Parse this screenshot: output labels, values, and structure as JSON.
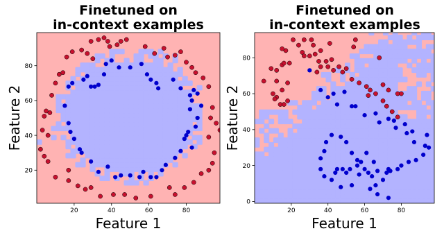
{
  "chart_data": [
    {
      "type": "scatter",
      "title": [
        "Finetuned on",
        "in-context examples"
      ],
      "xlabel": "Feature 1",
      "ylabel": "Feature 2",
      "xlim": [
        0,
        98
      ],
      "ylim": [
        1,
        99
      ],
      "xticks": [
        20,
        40,
        60,
        80
      ],
      "yticks": [
        20,
        40,
        60,
        80
      ],
      "background": "decision regions (class 0 red / class 1 blue), outer ring red, interior blue",
      "colors": {
        "class0": "#c8102e",
        "class1": "#0000cc",
        "region0": "#ffb3b3",
        "region1": "#b3b3ff"
      },
      "series": [
        {
          "class": 0,
          "points": [
            [
              2,
              32
            ],
            [
              3,
              43
            ],
            [
              4,
              51
            ],
            [
              5,
              54
            ],
            [
              7,
              53
            ],
            [
              6,
              40
            ],
            [
              8,
              63
            ],
            [
              10,
              70
            ],
            [
              12,
              75
            ],
            [
              14,
              76
            ],
            [
              16,
              85
            ],
            [
              19,
              88
            ],
            [
              24,
              89
            ],
            [
              27,
              87
            ],
            [
              30,
              84
            ],
            [
              29,
              94
            ],
            [
              33,
              95
            ],
            [
              36,
              96
            ],
            [
              38,
              94
            ],
            [
              39,
              91
            ],
            [
              43,
              92
            ],
            [
              45,
              94
            ],
            [
              48,
              95
            ],
            [
              58,
              91
            ],
            [
              63,
              87
            ],
            [
              68,
              90
            ],
            [
              70,
              85
            ],
            [
              74,
              86
            ],
            [
              77,
              88
            ],
            [
              80,
              82
            ],
            [
              83,
              79
            ],
            [
              85,
              76
            ],
            [
              89,
              73
            ],
            [
              92,
              68
            ],
            [
              94,
              56
            ],
            [
              93,
              50
            ],
            [
              96,
              47
            ],
            [
              98,
              43
            ],
            [
              92,
              39
            ],
            [
              95,
              30
            ],
            [
              94,
              24
            ],
            [
              92,
              20
            ],
            [
              88,
              18
            ],
            [
              84,
              13
            ],
            [
              79,
              10
            ],
            [
              74,
              6
            ],
            [
              71,
              10
            ],
            [
              61,
              5
            ],
            [
              53,
              4
            ],
            [
              47,
              6
            ],
            [
              41,
              6
            ],
            [
              34,
              5
            ],
            [
              29,
              10
            ],
            [
              26,
              9
            ],
            [
              22,
              11
            ],
            [
              17,
              14
            ],
            [
              17,
              20
            ],
            [
              10,
              16
            ],
            [
              6,
              25
            ],
            [
              4,
              28
            ]
          ]
        },
        {
          "class": 1,
          "points": [
            [
              15,
              57
            ],
            [
              17,
              68
            ],
            [
              19,
              70
            ],
            [
              25,
              72
            ],
            [
              27,
              74
            ],
            [
              29,
              68
            ],
            [
              31,
              68
            ],
            [
              33,
              69
            ],
            [
              36,
              75
            ],
            [
              37,
              81
            ],
            [
              40,
              83
            ],
            [
              44,
              79
            ],
            [
              50,
              79
            ],
            [
              56,
              81
            ],
            [
              59,
              75
            ],
            [
              61,
              72
            ],
            [
              64,
              70
            ],
            [
              65,
              67
            ],
            [
              73,
              72
            ],
            [
              77,
              67
            ],
            [
              82,
              63
            ],
            [
              83,
              60
            ],
            [
              84,
              66
            ],
            [
              86,
              64
            ],
            [
              88,
              57
            ],
            [
              82,
              55
            ],
            [
              86,
              50
            ],
            [
              85,
              45
            ],
            [
              81,
              42
            ],
            [
              80,
              40
            ],
            [
              79,
              38
            ],
            [
              83,
              33
            ],
            [
              77,
              31
            ],
            [
              74,
              27
            ],
            [
              69,
              23
            ],
            [
              67,
              20
            ],
            [
              64,
              16
            ],
            [
              61,
              16
            ],
            [
              57,
              19
            ],
            [
              55,
              16
            ],
            [
              50,
              17
            ],
            [
              45,
              17
            ],
            [
              42,
              16
            ],
            [
              38,
              22
            ],
            [
              33,
              19
            ],
            [
              29,
              25
            ],
            [
              24,
              30
            ],
            [
              23,
              32
            ],
            [
              20,
              38
            ],
            [
              18,
              42
            ],
            [
              17,
              47
            ]
          ]
        }
      ]
    },
    {
      "type": "scatter",
      "title": [
        "Finetuned on",
        "in-context examples"
      ],
      "xlabel": "Feature 1",
      "ylabel": "Feature 2",
      "xlim": [
        0,
        98
      ],
      "ylim": [
        -1,
        94
      ],
      "xticks": [
        20,
        40,
        60,
        80
      ],
      "yticks": [
        0,
        20,
        40,
        60,
        80
      ],
      "background": "decision regions (class 0 red / class 1 blue), upper-left red, lower-right blue",
      "colors": {
        "class0": "#c8102e",
        "class1": "#0000cc",
        "region0": "#ffb3b3",
        "region1": "#b3b3ff"
      },
      "series": [
        {
          "class": 0,
          "points": [
            [
              5,
              67
            ],
            [
              9,
              74
            ],
            [
              10,
              60
            ],
            [
              12,
              58
            ],
            [
              14,
              54
            ],
            [
              16,
              54
            ],
            [
              18,
              56
            ],
            [
              15,
              62
            ],
            [
              12,
              67
            ],
            [
              12,
              73
            ],
            [
              15,
              76
            ],
            [
              16,
              77
            ],
            [
              19,
              77
            ],
            [
              17,
              84
            ],
            [
              15,
              85
            ],
            [
              21,
              90
            ],
            [
              24,
              87
            ],
            [
              26,
              83
            ],
            [
              27,
              81
            ],
            [
              30,
              81
            ],
            [
              32,
              87
            ],
            [
              33,
              82
            ],
            [
              35,
              78
            ],
            [
              36,
              75
            ],
            [
              39,
              78
            ],
            [
              40,
              75
            ],
            [
              42,
              79
            ],
            [
              43,
              73
            ],
            [
              46,
              75
            ],
            [
              48,
              72
            ],
            [
              50,
              74
            ],
            [
              53,
              68
            ],
            [
              57,
              66
            ],
            [
              61,
              64
            ],
            [
              63,
              62
            ],
            [
              62,
              59
            ],
            [
              66,
              60
            ],
            [
              70,
              65
            ],
            [
              73,
              62
            ],
            [
              70,
              56
            ],
            [
              72,
              53
            ],
            [
              75,
              50
            ],
            [
              78,
              47
            ],
            [
              78,
              60
            ],
            [
              80,
              60
            ],
            [
              68,
              80
            ],
            [
              54,
              86
            ],
            [
              55,
              90
            ],
            [
              41,
              88
            ],
            [
              31,
              90
            ],
            [
              27,
              90
            ],
            [
              34,
              72
            ],
            [
              18,
              66
            ],
            [
              11,
              57
            ],
            [
              36,
              84
            ]
          ]
        },
        {
          "class": 1,
          "points": [
            [
              30,
              73
            ],
            [
              36,
              62
            ],
            [
              40,
              58
            ],
            [
              43,
              60
            ],
            [
              45,
              54
            ],
            [
              49,
              61
            ],
            [
              53,
              53
            ],
            [
              55,
              53
            ],
            [
              60,
              48
            ],
            [
              66,
              49
            ],
            [
              68,
              44
            ],
            [
              73,
              46
            ],
            [
              76,
              45
            ],
            [
              77,
              41
            ],
            [
              82,
              43
            ],
            [
              83,
              38
            ],
            [
              86,
              39
            ],
            [
              87,
              33
            ],
            [
              93,
              31
            ],
            [
              94,
              37
            ],
            [
              95,
              30
            ],
            [
              92,
              26
            ],
            [
              88,
              23
            ],
            [
              84,
              22
            ],
            [
              80,
              20
            ],
            [
              78,
              18
            ],
            [
              73,
              18
            ],
            [
              72,
              16
            ],
            [
              70,
              12
            ],
            [
              66,
              9
            ],
            [
              64,
              14
            ],
            [
              62,
              16
            ],
            [
              60,
              18
            ],
            [
              57,
              15
            ],
            [
              56,
              20
            ],
            [
              52,
              18
            ],
            [
              50,
              16
            ],
            [
              48,
              18
            ],
            [
              45,
              18
            ],
            [
              44,
              16
            ],
            [
              42,
              12
            ],
            [
              38,
              14
            ],
            [
              36,
              18
            ],
            [
              36,
              24
            ],
            [
              38,
              28
            ],
            [
              39,
              33
            ],
            [
              42,
              37
            ],
            [
              47,
              36
            ],
            [
              50,
              33
            ],
            [
              53,
              27
            ],
            [
              56,
              23
            ],
            [
              61,
              27
            ],
            [
              65,
              22
            ],
            [
              63,
              7
            ],
            [
              67,
              4
            ],
            [
              73,
              2
            ],
            [
              74,
              17
            ],
            [
              67,
              17
            ],
            [
              58,
              22
            ],
            [
              53,
              9
            ],
            [
              47,
              8
            ]
          ]
        }
      ]
    }
  ]
}
